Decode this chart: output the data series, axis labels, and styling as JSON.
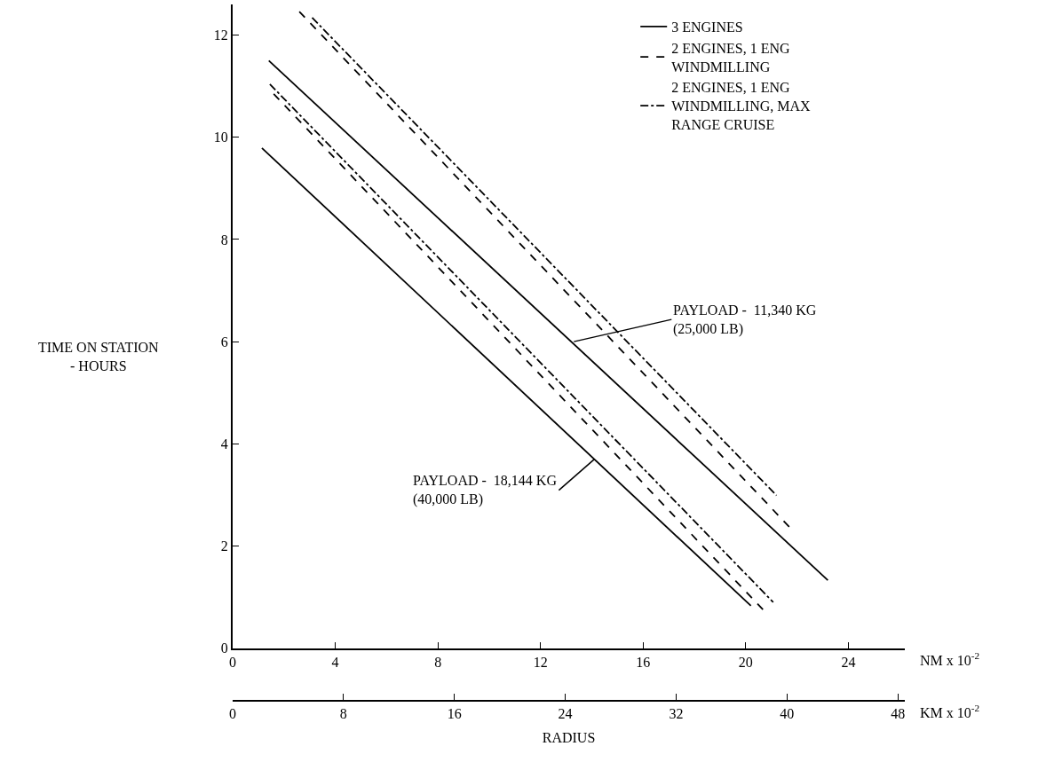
{
  "chart_data": {
    "type": "line",
    "xlabel": "RADIUS",
    "ylabel": "TIME ON STATION\n- HOURS",
    "xlim": [
      0,
      26.2
    ],
    "xticks": [
      0,
      4,
      8,
      12,
      16,
      20,
      24
    ],
    "ylim": [
      0,
      12.6
    ],
    "yticks": [
      0,
      2,
      4,
      6,
      8,
      10,
      12
    ],
    "x2lim": [
      0,
      48.5
    ],
    "x2ticks": [
      0,
      8,
      16,
      24,
      32,
      40,
      48
    ],
    "legend": "top right",
    "marker": "none",
    "series": [
      {
        "name": "3 ENGINES",
        "color": "#000000",
        "line_style": "solid",
        "x": [
          1.41,
          23.2
        ],
        "values": [
          11.5,
          1.33
        ]
      },
      {
        "name": "2 ENGINES, 1 ENG\nWINDMILLING",
        "color": "#000000",
        "line_style": "dashed",
        "x": [
          2.6,
          21.8
        ],
        "values": [
          12.46,
          2.32
        ]
      },
      {
        "name": "2 ENGINES, 1 ENG\nWINDMILLING, MAX\nRANGE CRUISE",
        "color": "#000000",
        "line_style": "dashdot",
        "x": [
          3.1,
          21.2
        ],
        "values": [
          12.34,
          2.99
        ]
      },
      {
        "color": "#000000",
        "line_style": "solid",
        "x": [
          1.14,
          20.2
        ],
        "values": [
          9.79,
          0.83
        ]
      },
      {
        "color": "#000000",
        "line_style": "dashed",
        "x": [
          1.6,
          20.7
        ],
        "values": [
          10.85,
          0.74
        ]
      },
      {
        "color": "#000000",
        "line_style": "dashdot",
        "x": [
          1.45,
          21.07
        ],
        "values": [
          11.04,
          0.9
        ]
      }
    ],
    "annotations": [
      {
        "text": "PAYLOAD -  11,340 KG\n(25,000 LB)",
        "x": 13.3,
        "y": 6.0
      },
      {
        "text": "PAYLOAD -  18,144 KG\n(40,000 LB)",
        "x": 14.1,
        "y": 3.7
      },
      "NM x 10$^{-2}$",
      "KM x 10$^{-2}$"
    ]
  }
}
